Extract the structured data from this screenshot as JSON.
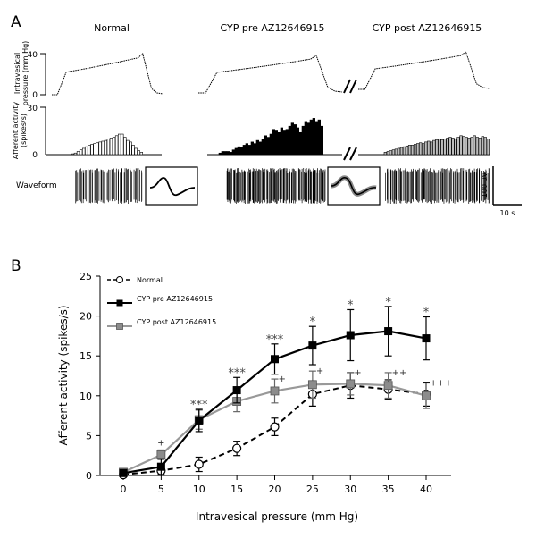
{
  "panelA": {
    "label": "A",
    "conditions": [
      "Normal",
      "CYP pre AZ12646915",
      "CYP post AZ12646915"
    ],
    "pressure_label": [
      "Intravesical",
      "pressure (mm Hg)"
    ],
    "pressure_ticks": [
      "40",
      "0"
    ],
    "activity_label": [
      "Afferent activity",
      "(spikes/s)"
    ],
    "activity_ticks": [
      "30",
      "0"
    ],
    "waveform_label": "Waveform",
    "scale_voltage": "100 μV",
    "scale_time": "10 s",
    "histograms": {
      "normal": [
        0.5,
        1,
        2,
        3,
        4,
        5,
        6,
        6.5,
        7,
        7.5,
        8,
        8.5,
        9,
        10,
        10.5,
        11,
        12,
        13,
        13,
        11,
        9,
        8,
        6,
        4,
        2.5,
        1.5
      ],
      "pre": [
        1,
        2,
        2,
        2,
        1.5,
        3,
        4,
        5,
        4.5,
        6,
        7,
        6,
        8,
        7,
        9,
        8,
        10,
        12,
        11,
        13,
        16,
        15,
        14,
        17,
        15,
        16,
        18,
        20,
        19,
        17,
        14,
        18,
        21,
        20,
        22,
        23,
        21,
        22,
        18
      ],
      "post": [
        1.5,
        2,
        2.5,
        3,
        3.5,
        4,
        4.5,
        5,
        5.5,
        6,
        6,
        6.5,
        7,
        7.5,
        7,
        8,
        8.5,
        8,
        9,
        9.5,
        10,
        9.5,
        10,
        10.5,
        11,
        10.5,
        10,
        11,
        12,
        11.5,
        11,
        10.5,
        11,
        12,
        11,
        10.5,
        11.5,
        11,
        10
      ]
    },
    "colors": {
      "normal": "#ffffff",
      "pre": "#000000",
      "post": "#bdbdbd"
    }
  },
  "panelB": {
    "label": "B"
  },
  "chart_data": {
    "type": "line",
    "x": [
      0,
      5,
      10,
      15,
      20,
      25,
      30,
      35,
      40
    ],
    "xlabel": "Intravesical pressure (mm Hg)",
    "ylabel": "Afferent activity (spikes/s)",
    "xlim": [
      0,
      40
    ],
    "ylim": [
      0,
      25
    ],
    "xticks": [
      "0",
      "5",
      "10",
      "15",
      "20",
      "25",
      "30",
      "35",
      "40"
    ],
    "yticks": [
      "0",
      "5",
      "10",
      "15",
      "20",
      "25"
    ],
    "series": [
      {
        "name": "Normal",
        "style": "dashed",
        "marker": "open-circle",
        "color": "#000000",
        "values": [
          0.1,
          0.6,
          1.4,
          3.4,
          6.1,
          10.2,
          11.3,
          10.8,
          10.2
        ],
        "errors": [
          0.3,
          0.6,
          0.9,
          0.9,
          1.1,
          1.5,
          1.6,
          1.2,
          1.5
        ]
      },
      {
        "name": "CYP pre AZ12646915",
        "style": "solid",
        "marker": "filled-square",
        "color": "#000000",
        "values": [
          0.3,
          1.1,
          6.9,
          10.7,
          14.6,
          16.3,
          17.6,
          18.1,
          17.2
        ],
        "errors": [
          0.3,
          1.0,
          1.4,
          1.6,
          1.9,
          2.4,
          3.2,
          3.1,
          2.7
        ]
      },
      {
        "name": "CYP post AZ12646915",
        "style": "solid",
        "marker": "grey-square",
        "color": "#999999",
        "values": [
          0.4,
          2.6,
          7.0,
          9.3,
          10.6,
          11.4,
          11.5,
          11.3,
          10.0
        ],
        "errors": [
          0.3,
          0.6,
          1.2,
          1.3,
          1.5,
          1.7,
          1.4,
          1.6,
          1.6
        ]
      }
    ],
    "annotations": {
      "pre": [
        "",
        "",
        "***",
        "***",
        "***",
        "*",
        "*",
        "*",
        "*"
      ],
      "post": [
        "",
        "+",
        "",
        "",
        "+",
        "+",
        "+",
        "++",
        "+++"
      ]
    },
    "legend": [
      "Normal",
      "CYP pre AZ12646915",
      "CYP post AZ12646915"
    ],
    "legend_position": "top-left"
  }
}
